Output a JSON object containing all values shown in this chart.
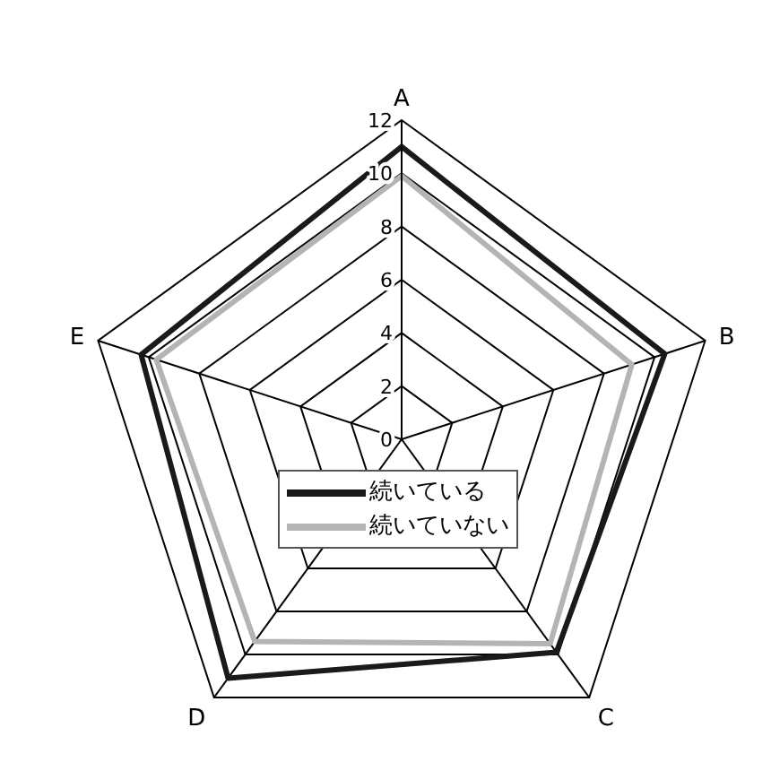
{
  "chart_data": {
    "type": "radar",
    "categories": [
      "A",
      "B",
      "C",
      "D",
      "E"
    ],
    "series": [
      {
        "name": "続いている",
        "color": "#1a1a1a",
        "values": [
          11,
          10.4,
          9.9,
          11.1,
          10.3
        ]
      },
      {
        "name": "続いていない",
        "color": "#b4b4b4",
        "values": [
          9.9,
          9.1,
          9.5,
          9.4,
          9.7
        ]
      }
    ],
    "ylim": [
      0,
      12
    ],
    "yticks": [
      0,
      2,
      4,
      6,
      8,
      10,
      12
    ],
    "grid": true,
    "legend": "center",
    "marker": "none"
  }
}
